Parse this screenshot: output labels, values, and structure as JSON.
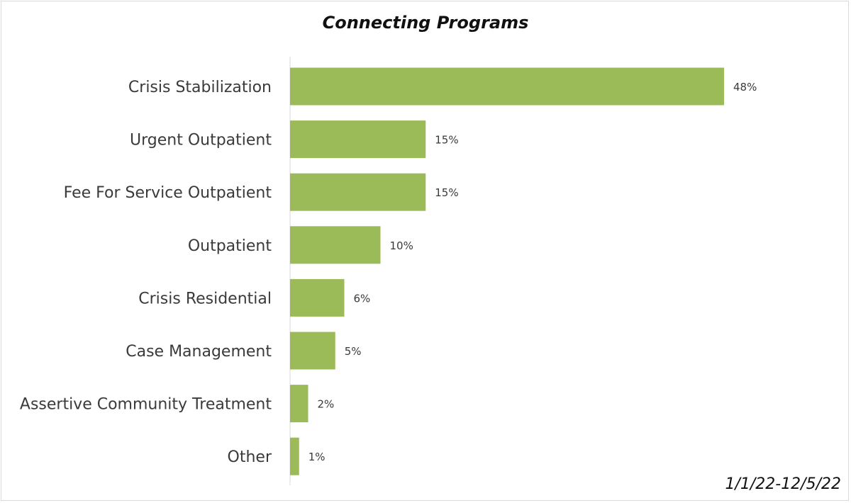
{
  "chart_data": {
    "type": "bar",
    "orientation": "horizontal",
    "title": "Connecting Programs",
    "categories": [
      "Crisis Stabilization",
      "Urgent Outpatient",
      "Fee For Service Outpatient",
      "Outpatient",
      "Crisis Residential",
      "Case Management",
      "Assertive Community Treatment",
      "Other"
    ],
    "values": [
      48,
      15,
      15,
      10,
      6,
      5,
      2,
      1
    ],
    "value_labels": [
      "48%",
      "15%",
      "15%",
      "10%",
      "6%",
      "5%",
      "2%",
      "1%"
    ],
    "xlim": [
      0,
      48
    ],
    "grid": false,
    "legend": "none",
    "bar_color": "#9bbb59",
    "axis_color": "#e6e6e6"
  },
  "footer": {
    "date_range": "1/1/22-12/5/22"
  }
}
